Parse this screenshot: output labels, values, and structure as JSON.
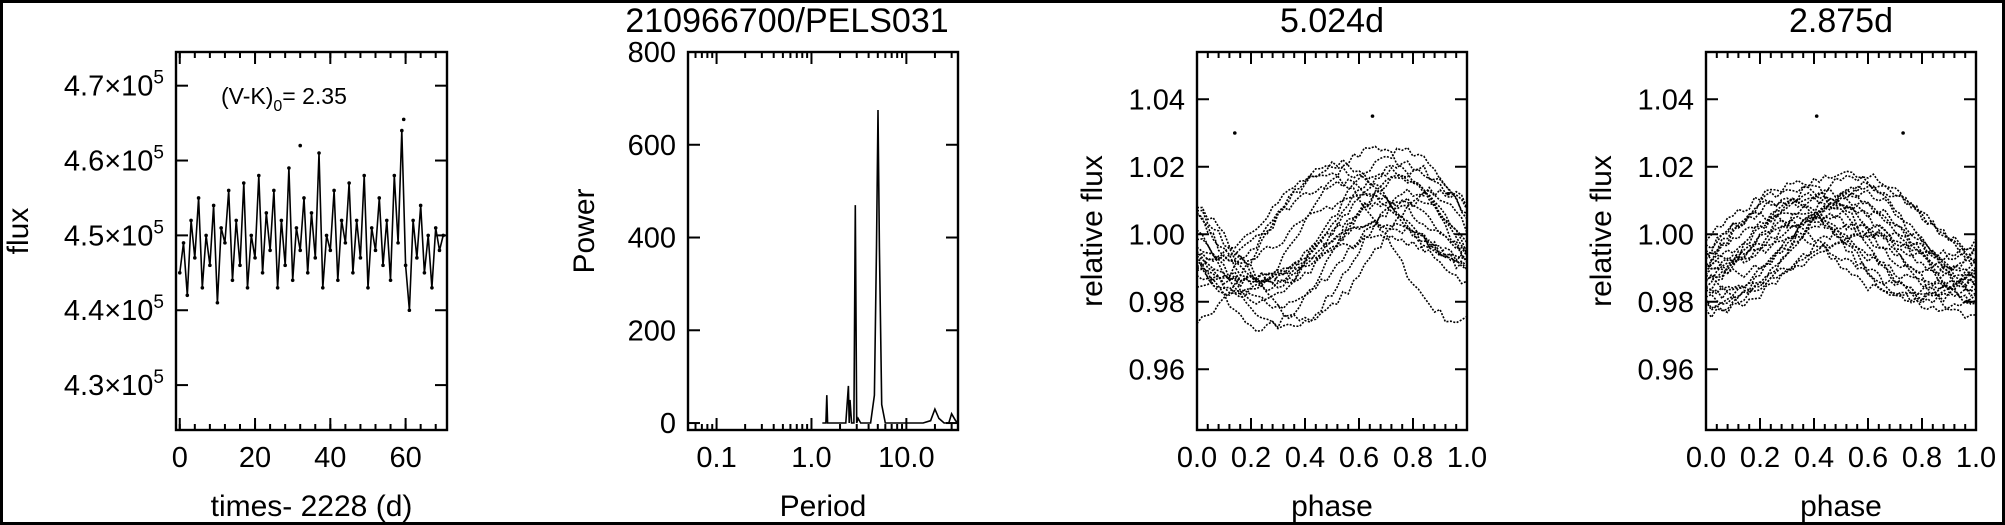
{
  "figure": {
    "title": "210966700/PELS031"
  },
  "chart_data": [
    {
      "type": "scatter",
      "title": "",
      "xlabel": "times- 2228 (d)",
      "ylabel": "flux",
      "annotation": {
        "prefix": "(V-K)",
        "sub": "0",
        "suffix": "= 2.35"
      },
      "xlim": [
        -1,
        71
      ],
      "ylim": [
        424000,
        474500
      ],
      "xticks": [
        0,
        20,
        40,
        60
      ],
      "xtick_labels": [
        "0",
        "20",
        "40",
        "60"
      ],
      "yticks": [
        430000,
        440000,
        450000,
        460000,
        470000
      ],
      "ytick_labels": [
        {
          "mant": "4.3",
          "exp": "5"
        },
        {
          "mant": "4.4",
          "exp": "5"
        },
        {
          "mant": "4.5",
          "exp": "5"
        },
        {
          "mant": "4.6",
          "exp": "5"
        },
        {
          "mant": "4.7",
          "exp": "5"
        }
      ],
      "series": [
        {
          "x": [
            0,
            1,
            2,
            3,
            4,
            5,
            6,
            7,
            8,
            9,
            10,
            11,
            12,
            13,
            14,
            15,
            16,
            17,
            18,
            19,
            20,
            21,
            22,
            23,
            24,
            25,
            26,
            27,
            28,
            29,
            30,
            31,
            32,
            33,
            34,
            35,
            36,
            37,
            38,
            39,
            40,
            41,
            42,
            43,
            44,
            45,
            46,
            47,
            48,
            49,
            50,
            51,
            52,
            53,
            54,
            55,
            56,
            57,
            58,
            59,
            60,
            61,
            62,
            63,
            64,
            65,
            66,
            67,
            68,
            69,
            70
          ],
          "y": [
            445000,
            449000,
            442000,
            452000,
            447000,
            455000,
            443000,
            450000,
            446000,
            454000,
            441000,
            451000,
            449000,
            456000,
            444000,
            452000,
            446000,
            457000,
            443000,
            450000,
            447000,
            458000,
            445000,
            453000,
            448000,
            456000,
            443000,
            452000,
            446000,
            459000,
            444000,
            451000,
            448000,
            455000,
            445000,
            453000,
            447000,
            461000,
            443000,
            450000,
            448000,
            456000,
            444000,
            452000,
            449000,
            457000,
            445000,
            452000,
            447000,
            458000,
            443000,
            451000,
            448000,
            455000,
            446000,
            452000,
            444000,
            458000,
            449000,
            464000,
            446000,
            440000,
            452000,
            447000,
            454000,
            445000,
            450000,
            443000,
            451000,
            448000,
            450000
          ]
        }
      ],
      "outliers": {
        "x": [
          32,
          59.5
        ],
        "y": [
          462000,
          465500
        ]
      }
    },
    {
      "type": "line",
      "title": "",
      "xlabel": "Period",
      "ylabel": "Power",
      "xscale": "log",
      "xlim": [
        0.05,
        35
      ],
      "ylim": [
        -15,
        800
      ],
      "xticks": [
        0.1,
        1.0,
        10.0
      ],
      "xtick_labels": [
        "0.1",
        "1.0",
        "10.0"
      ],
      "yticks": [
        0,
        200,
        400,
        600,
        800
      ],
      "ytick_labels": [
        "0",
        "200",
        "400",
        "600",
        "800"
      ],
      "series": [
        {
          "x": [
            1.3,
            1.42,
            1.45,
            1.48,
            1.6,
            2.3,
            2.45,
            2.5,
            2.55,
            2.65,
            2.8,
            2.9,
            3.0,
            3.1,
            3.3,
            4.2,
            4.6,
            4.85,
            5.02,
            5.2,
            5.5,
            6.0,
            8.0,
            15,
            18,
            20,
            22,
            25,
            28,
            30,
            33,
            35
          ],
          "y": [
            0,
            0,
            60,
            0,
            0,
            0,
            80,
            0,
            50,
            0,
            0,
            470,
            0,
            10,
            0,
            0,
            60,
            380,
            675,
            380,
            40,
            0,
            0,
            0,
            5,
            30,
            10,
            0,
            0,
            20,
            5,
            0
          ]
        }
      ]
    },
    {
      "type": "scatter",
      "title": "5.024d",
      "xlabel": "phase",
      "ylabel": "relative flux",
      "xlim": [
        0,
        1
      ],
      "ylim": [
        0.942,
        1.054
      ],
      "xticks": [
        0,
        0.2,
        0.4,
        0.6,
        0.8,
        1.0
      ],
      "xtick_labels": [
        "0.0",
        "0.2",
        "0.4",
        "0.6",
        "0.8",
        "1.0"
      ],
      "yticks": [
        0.96,
        0.98,
        1.0,
        1.02,
        1.04
      ],
      "ytick_labels": [
        "0.96",
        "0.98",
        "1.00",
        "1.02",
        "1.04"
      ],
      "series": [
        {
          "phase_peak": 0.7,
          "amp": 0.018,
          "offset": 0.999,
          "count": 14
        },
        {
          "phase_peak": 0.5,
          "amp": 0.01,
          "offset": 0.997,
          "count": 4
        }
      ],
      "outliers": {
        "x": [
          0.14,
          0.65,
          0.93
        ],
        "y": [
          1.03,
          1.035,
          1.012
        ]
      }
    },
    {
      "type": "scatter",
      "title": "2.875d",
      "xlabel": "phase",
      "ylabel": "relative flux",
      "xlim": [
        0,
        1
      ],
      "ylim": [
        0.942,
        1.054
      ],
      "xticks": [
        0,
        0.2,
        0.4,
        0.6,
        0.8,
        1.0
      ],
      "xtick_labels": [
        "0.0",
        "0.2",
        "0.4",
        "0.6",
        "0.8",
        "1.0"
      ],
      "yticks": [
        0.96,
        0.98,
        1.0,
        1.02,
        1.04
      ],
      "ytick_labels": [
        "0.96",
        "0.98",
        "1.00",
        "1.02",
        "1.04"
      ],
      "series": [
        {
          "phase_peak": 0.43,
          "amp": 0.014,
          "offset": 0.998,
          "count": 22
        }
      ],
      "outliers": {
        "x": [
          0.41,
          0.73
        ],
        "y": [
          1.035,
          1.03
        ]
      }
    }
  ]
}
